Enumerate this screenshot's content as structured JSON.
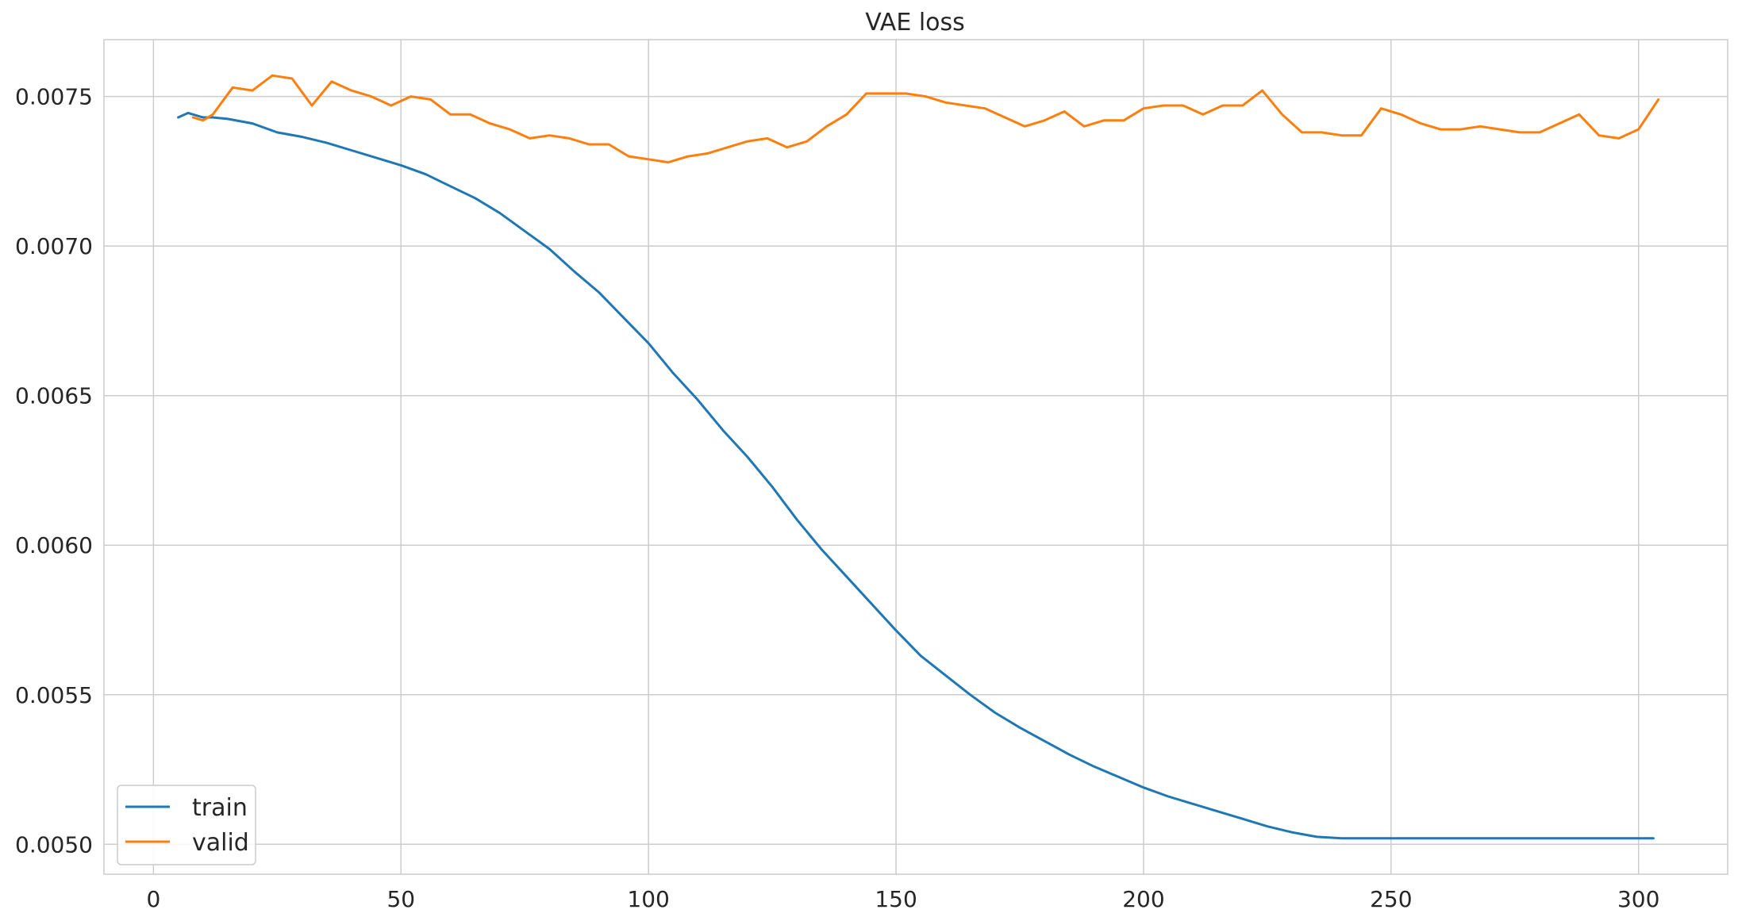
{
  "chart_data": {
    "type": "line",
    "title": "VAE loss",
    "xlabel": "",
    "ylabel": "",
    "xlim": [
      -10,
      318
    ],
    "ylim": [
      0.0049,
      0.00769
    ],
    "x_ticks": [
      0,
      50,
      100,
      150,
      200,
      250,
      300
    ],
    "x_tick_labels": [
      "0",
      "50",
      "100",
      "150",
      "200",
      "250",
      "300"
    ],
    "y_ticks": [
      0.005,
      0.0055,
      0.006,
      0.0065,
      0.007,
      0.0075
    ],
    "y_tick_labels": [
      "0.0050",
      "0.0055",
      "0.0060",
      "0.0065",
      "0.0070",
      "0.0075"
    ],
    "grid": true,
    "legend_position": "lower-left",
    "series": [
      {
        "name": "train",
        "color": "#1f77b4",
        "x": [
          5,
          7,
          10,
          12,
          15,
          20,
          25,
          30,
          35,
          40,
          45,
          50,
          55,
          60,
          65,
          70,
          75,
          80,
          85,
          90,
          95,
          100,
          105,
          110,
          115,
          120,
          125,
          130,
          135,
          140,
          145,
          150,
          155,
          160,
          165,
          170,
          175,
          180,
          185,
          190,
          195,
          200,
          205,
          210,
          215,
          220,
          225,
          230,
          235,
          240,
          245,
          250,
          255,
          260,
          265,
          270,
          275,
          280,
          285,
          290,
          295,
          300,
          303
        ],
        "y": [
          0.00743,
          0.007445,
          0.00743,
          0.00743,
          0.007425,
          0.00741,
          0.00738,
          0.007365,
          0.007345,
          0.00732,
          0.007295,
          0.00727,
          0.00724,
          0.0072,
          0.00716,
          0.00711,
          0.00705,
          0.00699,
          0.006915,
          0.006845,
          0.00676,
          0.006675,
          0.006575,
          0.006485,
          0.006385,
          0.006295,
          0.006195,
          0.006085,
          0.005985,
          0.005895,
          0.005805,
          0.005715,
          0.00563,
          0.005565,
          0.0055,
          0.00544,
          0.00539,
          0.005345,
          0.0053,
          0.00526,
          0.005225,
          0.00519,
          0.00516,
          0.005135,
          0.00511,
          0.005085,
          0.00506,
          0.00504,
          0.005025,
          0.00502,
          0.00502,
          0.00502,
          0.00502,
          0.00502,
          0.00502,
          0.00502,
          0.00502,
          0.00502,
          0.00502,
          0.00502,
          0.00502,
          0.00502,
          0.00502
        ]
      },
      {
        "name": "valid",
        "color": "#ff7f0e",
        "x": [
          8,
          10,
          12,
          16,
          20,
          24,
          28,
          32,
          36,
          40,
          44,
          48,
          52,
          56,
          60,
          64,
          68,
          72,
          76,
          80,
          84,
          88,
          92,
          96,
          100,
          104,
          108,
          112,
          116,
          120,
          124,
          128,
          132,
          136,
          140,
          144,
          148,
          152,
          156,
          160,
          164,
          168,
          172,
          176,
          180,
          184,
          188,
          192,
          196,
          200,
          204,
          208,
          212,
          216,
          220,
          224,
          228,
          232,
          236,
          240,
          244,
          248,
          252,
          256,
          260,
          264,
          268,
          272,
          276,
          280,
          284,
          288,
          292,
          296,
          300,
          304
        ],
        "y": [
          0.00743,
          0.00742,
          0.00744,
          0.00753,
          0.00752,
          0.00757,
          0.00756,
          0.00747,
          0.00755,
          0.00752,
          0.0075,
          0.00747,
          0.0075,
          0.00749,
          0.00744,
          0.00744,
          0.00741,
          0.00739,
          0.00736,
          0.00737,
          0.00736,
          0.00734,
          0.00734,
          0.0073,
          0.00729,
          0.00728,
          0.0073,
          0.00731,
          0.00733,
          0.00735,
          0.00736,
          0.00733,
          0.00735,
          0.0074,
          0.00744,
          0.00751,
          0.00751,
          0.00751,
          0.0075,
          0.00748,
          0.00747,
          0.00746,
          0.00743,
          0.0074,
          0.00742,
          0.00745,
          0.0074,
          0.00742,
          0.00742,
          0.00746,
          0.00747,
          0.00747,
          0.00744,
          0.00747,
          0.00747,
          0.00752,
          0.00744,
          0.00738,
          0.00738,
          0.00737,
          0.00737,
          0.00746,
          0.00744,
          0.00741,
          0.00739,
          0.00739,
          0.0074,
          0.00739,
          0.00738,
          0.00738,
          0.00741,
          0.00744,
          0.00737,
          0.00736,
          0.00739,
          0.00749
        ]
      }
    ]
  }
}
